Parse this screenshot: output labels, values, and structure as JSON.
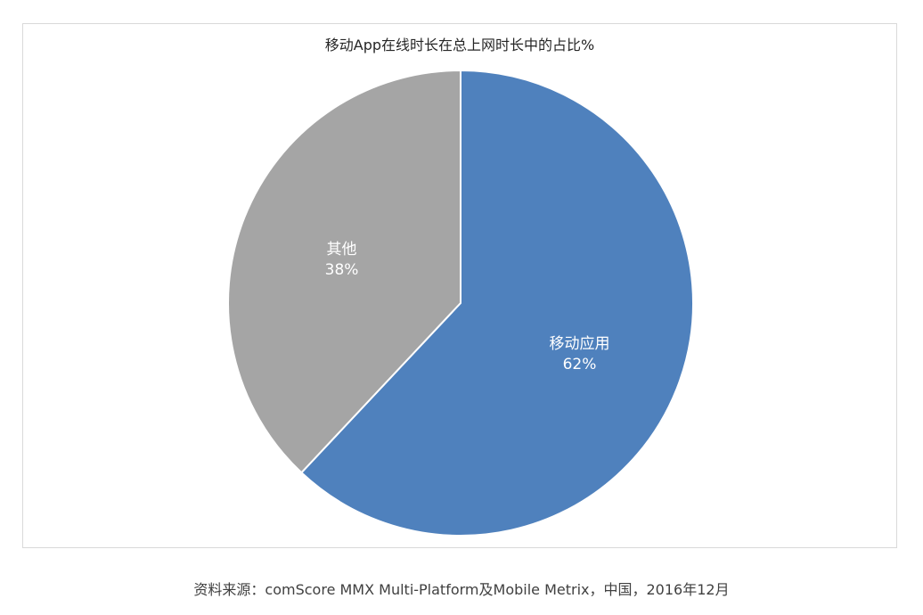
{
  "chart_data": {
    "type": "pie",
    "title": "移动App在线时长在总上网时长中的占比%",
    "slices": [
      {
        "label": "移动应用",
        "value": 62,
        "value_label": "62%",
        "color": "#4f81bd"
      },
      {
        "label": "其他",
        "value": 38,
        "value_label": "38%",
        "color": "#a5a5a5"
      }
    ],
    "start_angle": "12 o'clock",
    "direction": "clockwise",
    "legend": "none"
  },
  "source": "资料来源：comScore MMX Multi-Platform及Mobile Metrix，中国，2016年12月"
}
